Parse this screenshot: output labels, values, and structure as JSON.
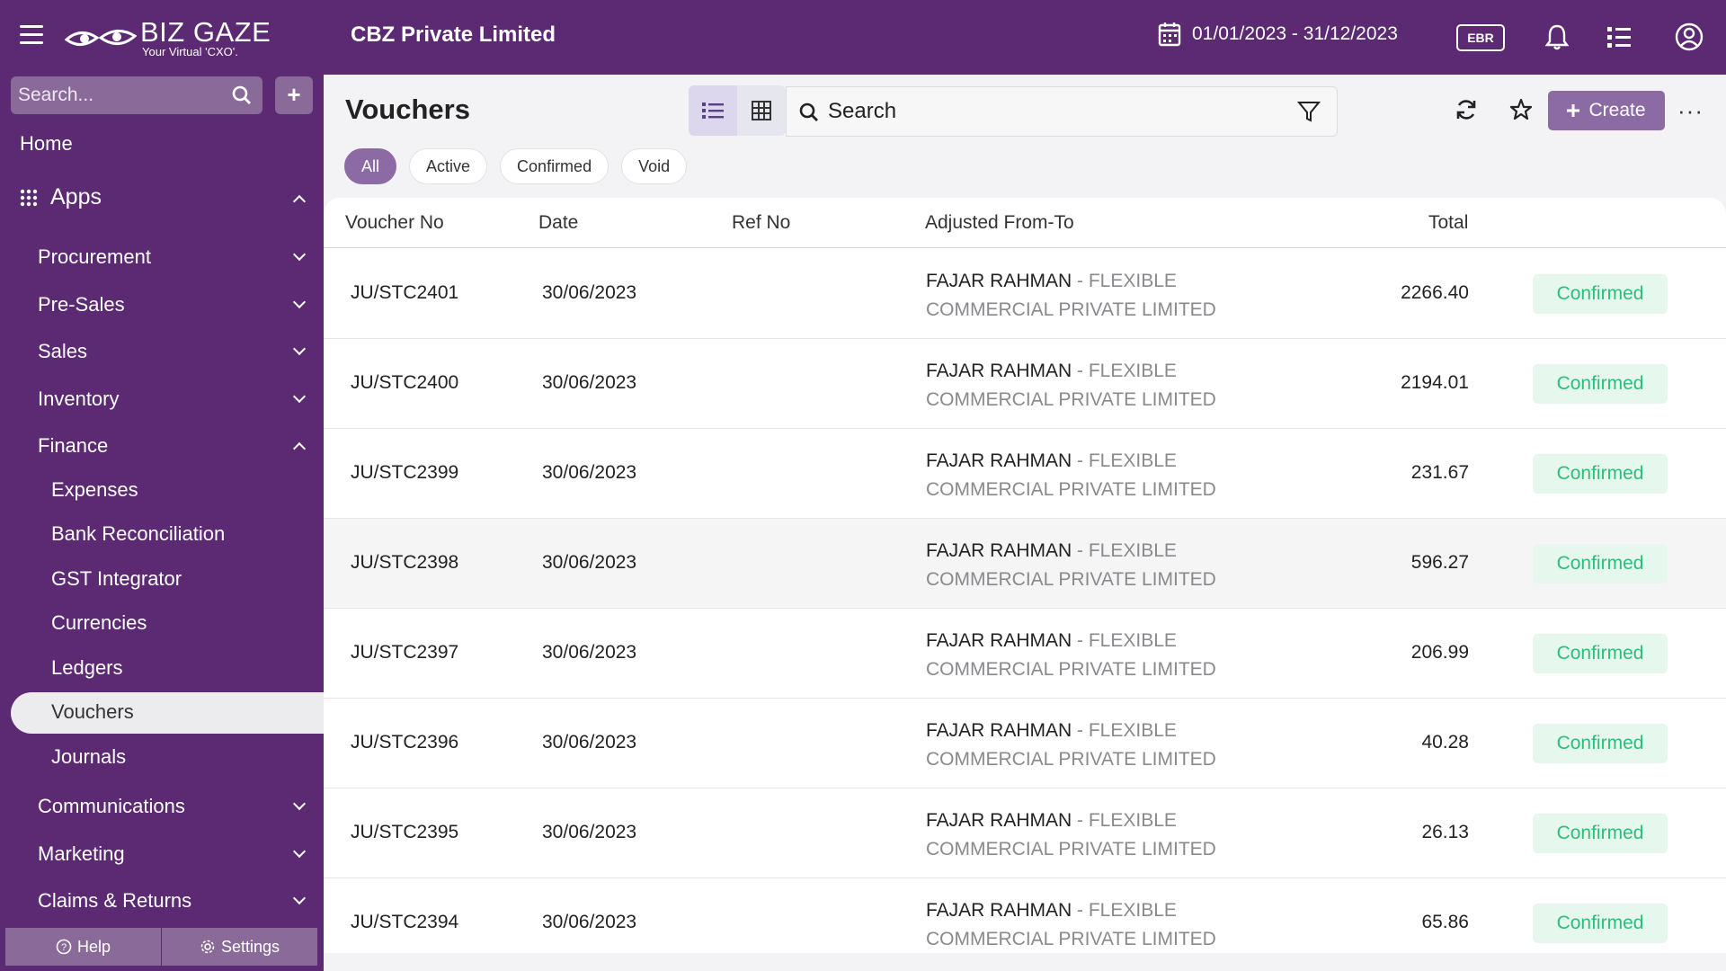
{
  "header": {
    "logo_brand": "BIZ GAZE",
    "logo_tagline": "Your Virtual 'CXO'.",
    "company": "CBZ Private Limited",
    "date_range": "01/01/2023 - 31/12/2023",
    "ebr_label": "EBR"
  },
  "sidebar": {
    "search_placeholder": "Search...",
    "add_label": "+",
    "home": "Home",
    "apps": "Apps",
    "sections": [
      {
        "label": "Procurement"
      },
      {
        "label": "Pre-Sales"
      },
      {
        "label": "Sales"
      },
      {
        "label": "Inventory"
      },
      {
        "label": "Finance"
      }
    ],
    "finance_items": [
      {
        "label": "Expenses"
      },
      {
        "label": "Bank Reconciliation"
      },
      {
        "label": "GST Integrator"
      },
      {
        "label": "Currencies"
      },
      {
        "label": "Ledgers"
      },
      {
        "label": "Vouchers"
      },
      {
        "label": "Journals"
      }
    ],
    "more_sections": [
      {
        "label": "Communications"
      },
      {
        "label": "Marketing"
      },
      {
        "label": "Claims & Returns"
      }
    ],
    "help": "Help",
    "settings": "Settings"
  },
  "main": {
    "title": "Vouchers",
    "search_placeholder": "Search",
    "create_label": "Create",
    "more_label": "···",
    "filters": [
      {
        "label": "All",
        "active": true
      },
      {
        "label": "Active",
        "active": false
      },
      {
        "label": "Confirmed",
        "active": false
      },
      {
        "label": "Void",
        "active": false
      }
    ]
  },
  "table": {
    "columns": {
      "voucher_no": "Voucher No",
      "date": "Date",
      "ref_no": "Ref No",
      "adjusted": "Adjusted From-To",
      "total": "Total"
    },
    "rows": [
      {
        "voucher_no": "JU/STC2401",
        "date": "30/06/2023",
        "ref_no": "",
        "name": "FAJAR RAHMAN",
        "sep": " - ",
        "company_a": "FLEXIBLE",
        "company_b": "COMMERCIAL PRIVATE LIMITED",
        "total": "2266.40",
        "status": "Confirmed"
      },
      {
        "voucher_no": "JU/STC2400",
        "date": "30/06/2023",
        "ref_no": "",
        "name": "FAJAR RAHMAN",
        "sep": " - ",
        "company_a": "FLEXIBLE",
        "company_b": "COMMERCIAL PRIVATE LIMITED",
        "total": "2194.01",
        "status": "Confirmed"
      },
      {
        "voucher_no": "JU/STC2399",
        "date": "30/06/2023",
        "ref_no": "",
        "name": "FAJAR RAHMAN",
        "sep": " - ",
        "company_a": "FLEXIBLE",
        "company_b": "COMMERCIAL PRIVATE LIMITED",
        "total": "231.67",
        "status": "Confirmed"
      },
      {
        "voucher_no": "JU/STC2398",
        "date": "30/06/2023",
        "ref_no": "",
        "name": "FAJAR RAHMAN",
        "sep": " - ",
        "company_a": "FLEXIBLE",
        "company_b": "COMMERCIAL PRIVATE LIMITED",
        "total": "596.27",
        "status": "Confirmed"
      },
      {
        "voucher_no": "JU/STC2397",
        "date": "30/06/2023",
        "ref_no": "",
        "name": "FAJAR RAHMAN",
        "sep": " - ",
        "company_a": "FLEXIBLE",
        "company_b": "COMMERCIAL PRIVATE LIMITED",
        "total": "206.99",
        "status": "Confirmed"
      },
      {
        "voucher_no": "JU/STC2396",
        "date": "30/06/2023",
        "ref_no": "",
        "name": "FAJAR RAHMAN",
        "sep": " - ",
        "company_a": "FLEXIBLE",
        "company_b": "COMMERCIAL PRIVATE LIMITED",
        "total": "40.28",
        "status": "Confirmed"
      },
      {
        "voucher_no": "JU/STC2395",
        "date": "30/06/2023",
        "ref_no": "",
        "name": "FAJAR RAHMAN",
        "sep": " - ",
        "company_a": "FLEXIBLE",
        "company_b": "COMMERCIAL PRIVATE LIMITED",
        "total": "26.13",
        "status": "Confirmed"
      },
      {
        "voucher_no": "JU/STC2394",
        "date": "30/06/2023",
        "ref_no": "",
        "name": "FAJAR RAHMAN",
        "sep": " - ",
        "company_a": "FLEXIBLE",
        "company_b": "COMMERCIAL PRIVATE LIMITED",
        "total": "65.86",
        "status": "Confirmed"
      }
    ]
  },
  "colors": {
    "brand": "#5b2a72",
    "accent": "#8c6aa4",
    "status_confirmed": "#2bbf7a"
  },
  "icons": [
    "hamburger-icon",
    "calendar-icon",
    "bell-icon",
    "list-icon",
    "user-circle-icon",
    "search-icon",
    "plus-icon",
    "apps-grid-icon",
    "list-view-icon",
    "grid-view-icon",
    "filter-icon",
    "refresh-icon",
    "star-icon",
    "help-icon",
    "gear-icon"
  ]
}
